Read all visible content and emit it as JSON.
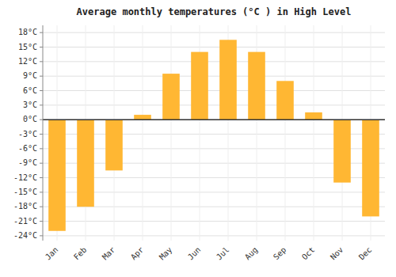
{
  "chart_data": {
    "type": "bar",
    "title": "Average monthly temperatures (°C ) in High Level",
    "categories": [
      "Jan",
      "Feb",
      "Mar",
      "Apr",
      "May",
      "Jun",
      "Jul",
      "Aug",
      "Sep",
      "Oct",
      "Nov",
      "Dec"
    ],
    "values": [
      -23,
      -18,
      -10.5,
      1,
      9.5,
      14,
      16.5,
      14,
      8,
      1.5,
      -13,
      -20
    ],
    "color": "#FFB733",
    "ylim": [
      -25,
      19.5
    ],
    "yticks": [
      {
        "value": -24,
        "label": "-24°C"
      },
      {
        "value": -21,
        "label": "-21°C"
      },
      {
        "value": -18,
        "label": "-18°C"
      },
      {
        "value": -15,
        "label": "-15°C"
      },
      {
        "value": -12,
        "label": "-12°C"
      },
      {
        "value": -9,
        "label": "-9°C"
      },
      {
        "value": -6,
        "label": "-6°C"
      },
      {
        "value": -3,
        "label": "-3°C"
      },
      {
        "value": 0,
        "label": "0°C"
      },
      {
        "value": 3,
        "label": "3°C"
      },
      {
        "value": 6,
        "label": "6°C"
      },
      {
        "value": 9,
        "label": "9°C"
      },
      {
        "value": 12,
        "label": "12°C"
      },
      {
        "value": 15,
        "label": "15°C"
      },
      {
        "value": 18,
        "label": "18°C"
      }
    ],
    "grid": true
  }
}
